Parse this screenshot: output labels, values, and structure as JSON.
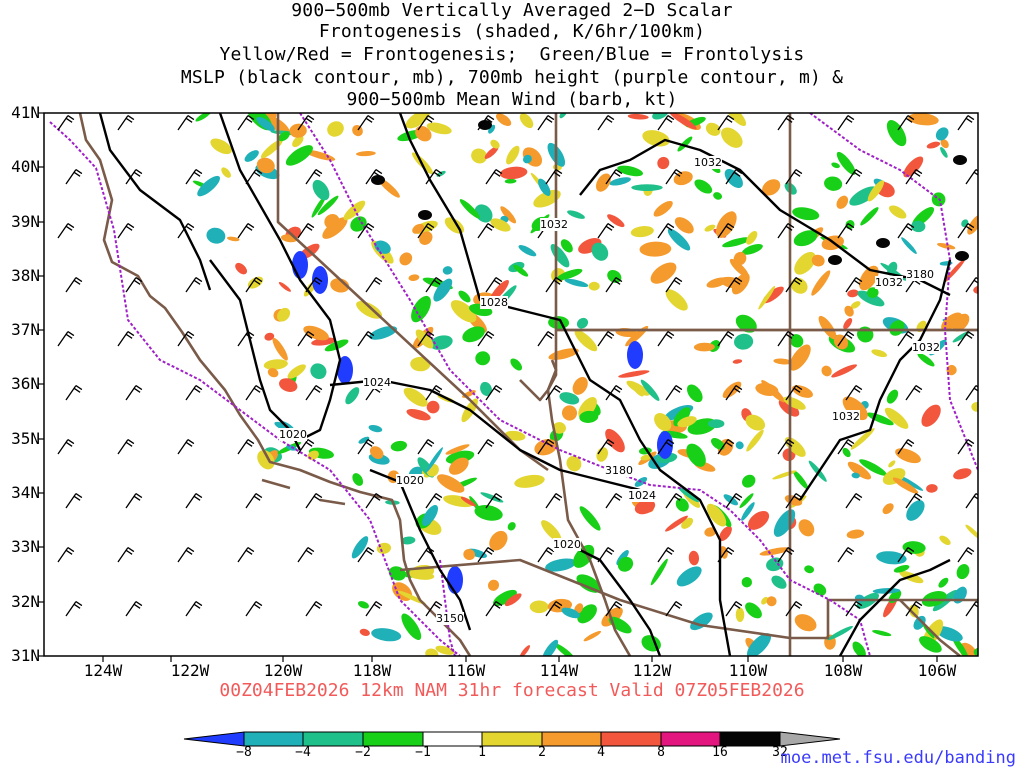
{
  "title": {
    "lines": [
      "900−500mb Vertically Averaged 2−D Scalar",
      "Frontogenesis (shaded, K/6hr/100km)",
      "Yellow/Red = Frontogenesis;  Green/Blue = Frontolysis",
      "MSLP (black contour, mb), 700mb height (purple contour, m) &",
      "900−500mb Mean Wind (barb, kt)"
    ]
  },
  "axes": {
    "lat_labels": [
      "41N",
      "40N",
      "39N",
      "38N",
      "37N",
      "36N",
      "35N",
      "34N",
      "33N",
      "32N",
      "31N"
    ],
    "lon_labels": [
      "124W",
      "122W",
      "120W",
      "118W",
      "116W",
      "114W",
      "112W",
      "110W",
      "108W",
      "106W"
    ]
  },
  "valid_line": "00Z04FEB2026 12km NAM 31hr forecast Valid 07Z05FEB2026",
  "contour_labels": {
    "mslp": [
      "1032",
      "1032",
      "1028",
      "1024",
      "1020",
      "1020",
      "1024",
      "1020",
      "1032",
      "1032",
      "1032"
    ],
    "height": [
      "3180",
      "3180",
      "3150"
    ]
  },
  "colorbar": {
    "ticks": [
      "−8",
      "−4",
      "−2",
      "−1",
      "1",
      "2",
      "4",
      "8",
      "16",
      "32"
    ],
    "colors": {
      "lt_neg8": "#1f3cff",
      "neg8_neg4": "#1fb0b8",
      "neg4_neg2": "#20c08a",
      "neg2_neg1": "#18d018",
      "neg1_1": "#ffffff",
      "1_2": "#e3d630",
      "2_4": "#f59a2c",
      "4_8": "#f2563d",
      "8_16": "#e3157f",
      "16_32": "#050505",
      "gt_32": "#a8a8a8"
    }
  },
  "colors": {
    "coast": "#7a5a48",
    "mslp": "#000000",
    "height": "#a020c8",
    "valid_text": "#f25a5a",
    "credit_text": "#3a3aff",
    "frame": "#000000"
  },
  "credit": "moe.met.fsu.edu/banding"
}
